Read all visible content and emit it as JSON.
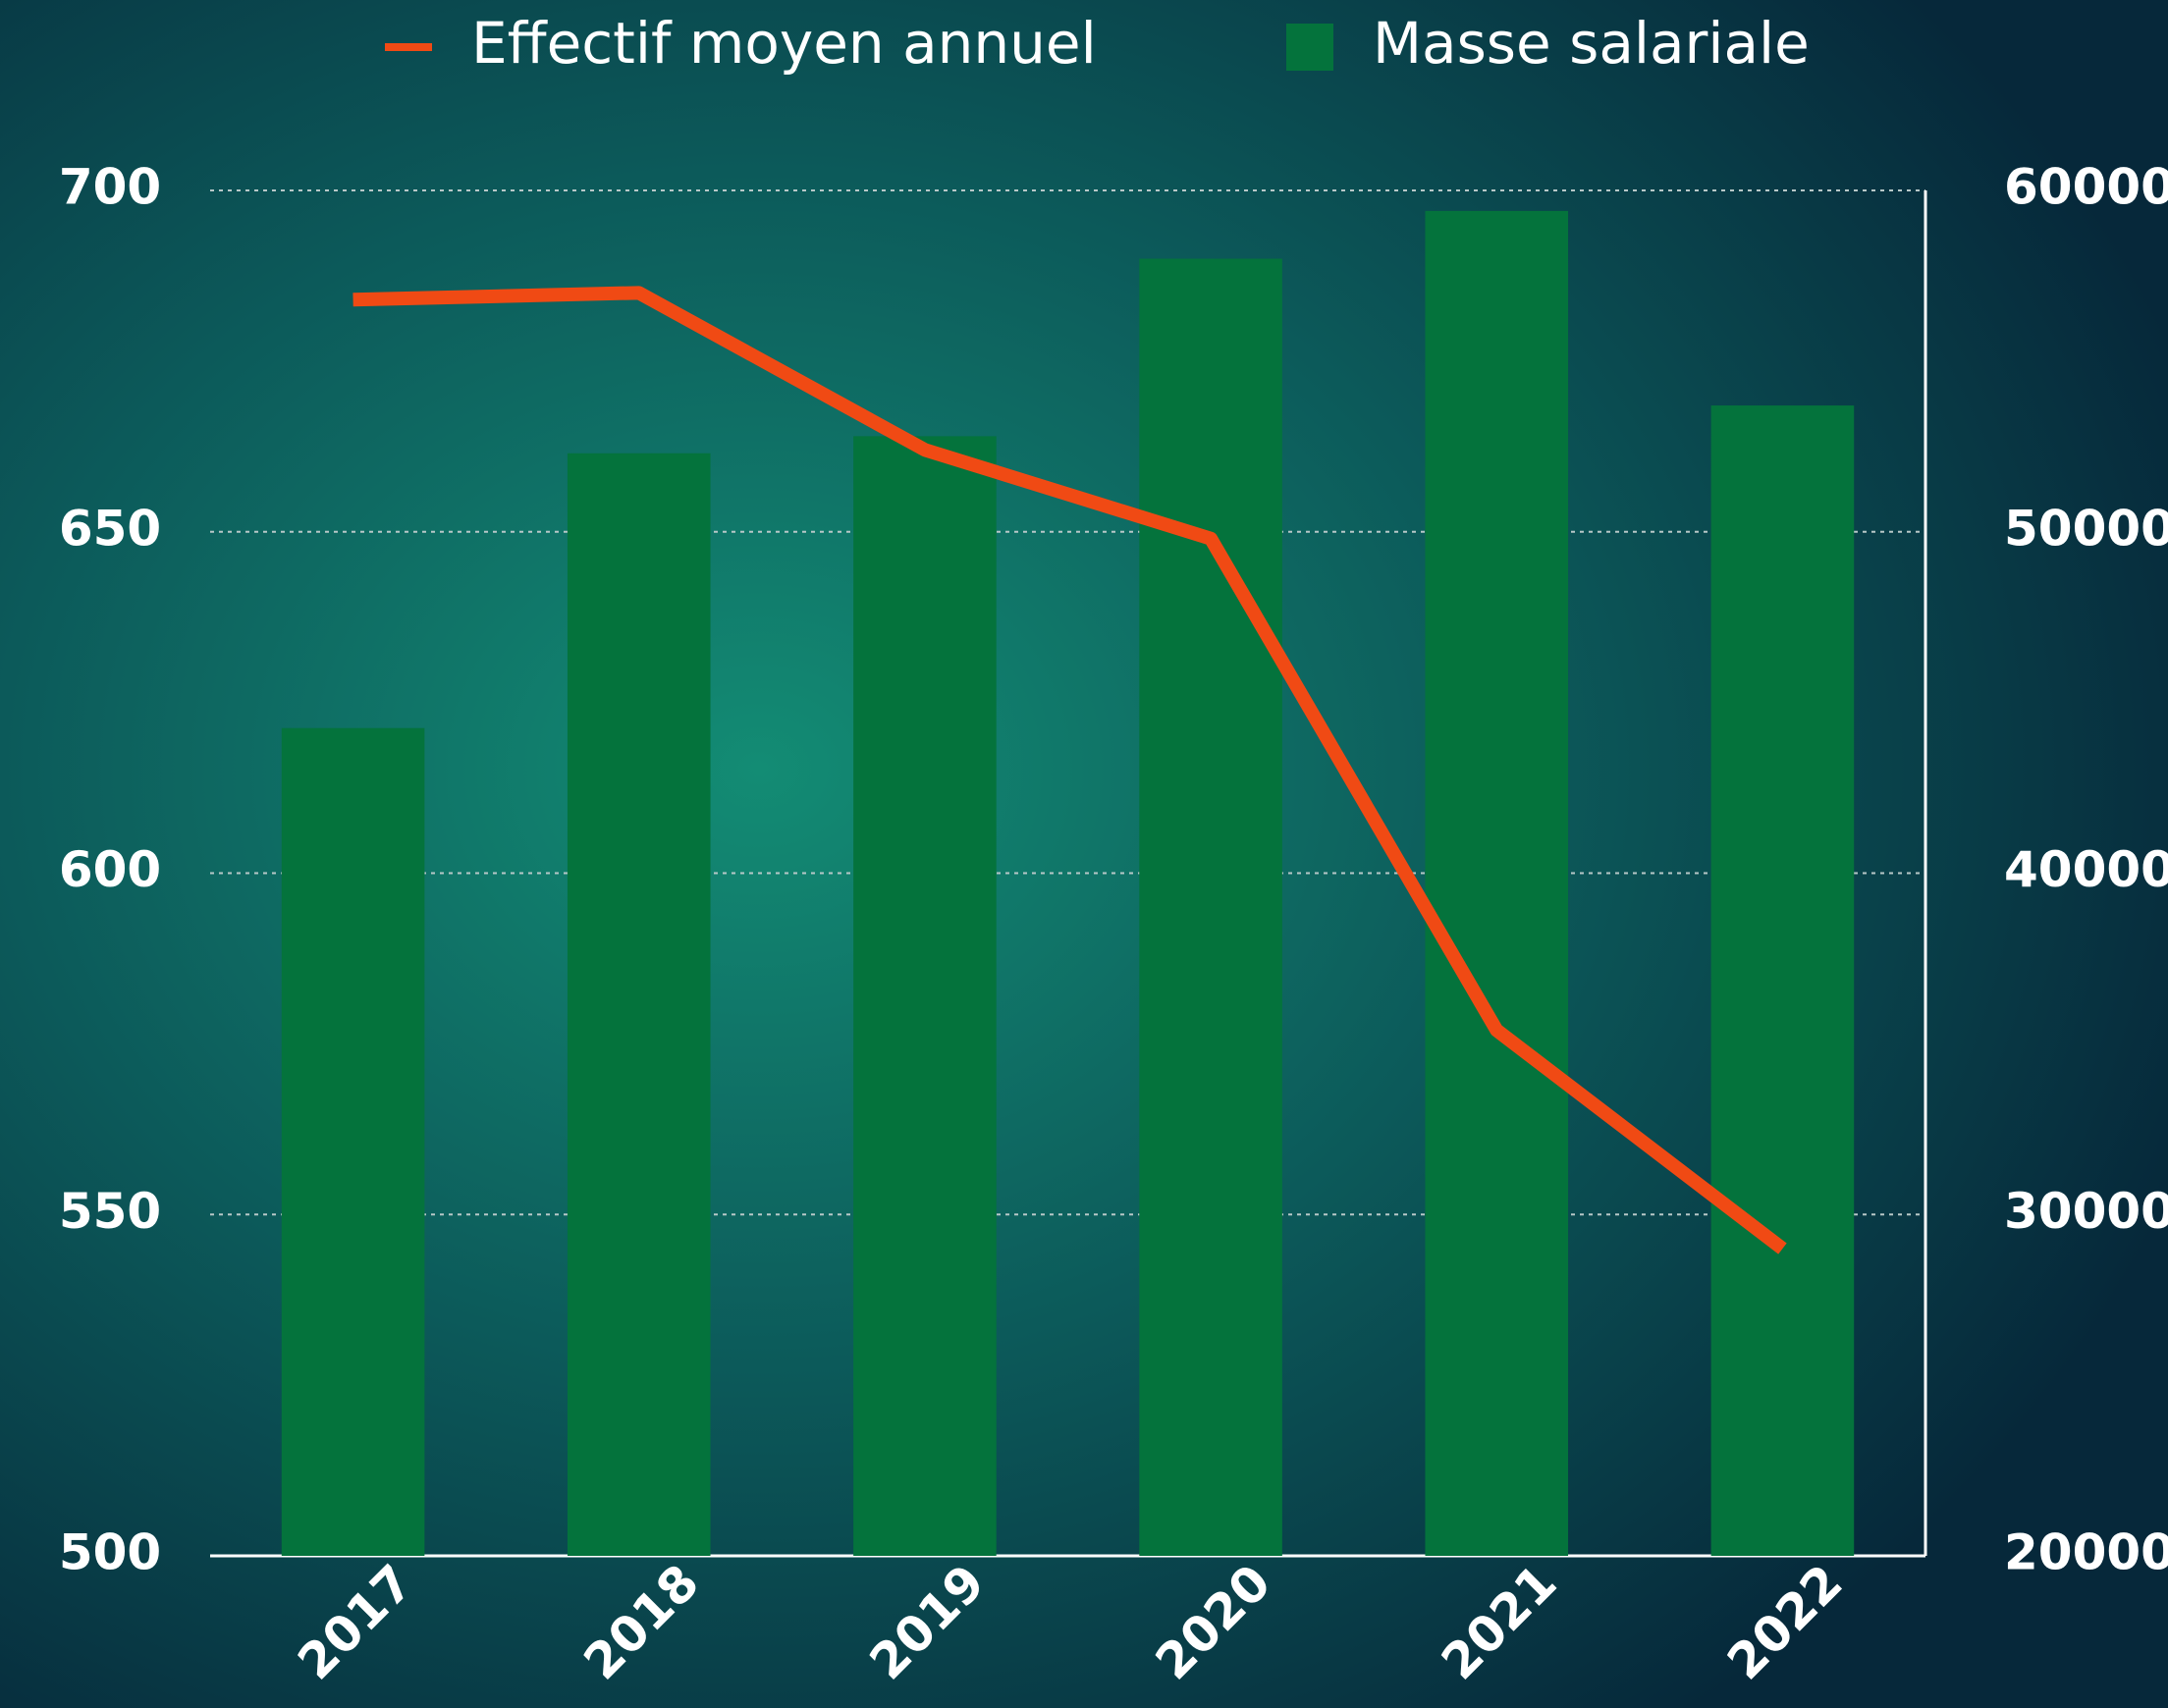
{
  "chart_data": {
    "type": "bar_line",
    "categories": [
      "2017",
      "2018",
      "2019",
      "2020",
      "2021",
      "2022"
    ],
    "series": [
      {
        "name": "Effectif moyen annuel",
        "type": "line",
        "color": "#f04a14",
        "axis": "y",
        "values": [
          684,
          685,
          662,
          649,
          577,
          545
        ]
      },
      {
        "name": "Masse salariale",
        "type": "bar",
        "color": "#04733c",
        "axis": "y2",
        "values": [
          44250,
          52300,
          52800,
          58000,
          59400,
          53700
        ]
      }
    ],
    "ylim": [
      500,
      700
    ],
    "yticks": [
      500,
      550,
      600,
      650,
      700
    ],
    "y2lim": [
      20000,
      60000
    ],
    "y2ticks": [
      20000,
      30000,
      40000,
      50000,
      60000
    ],
    "grid": true,
    "legend": "top"
  }
}
